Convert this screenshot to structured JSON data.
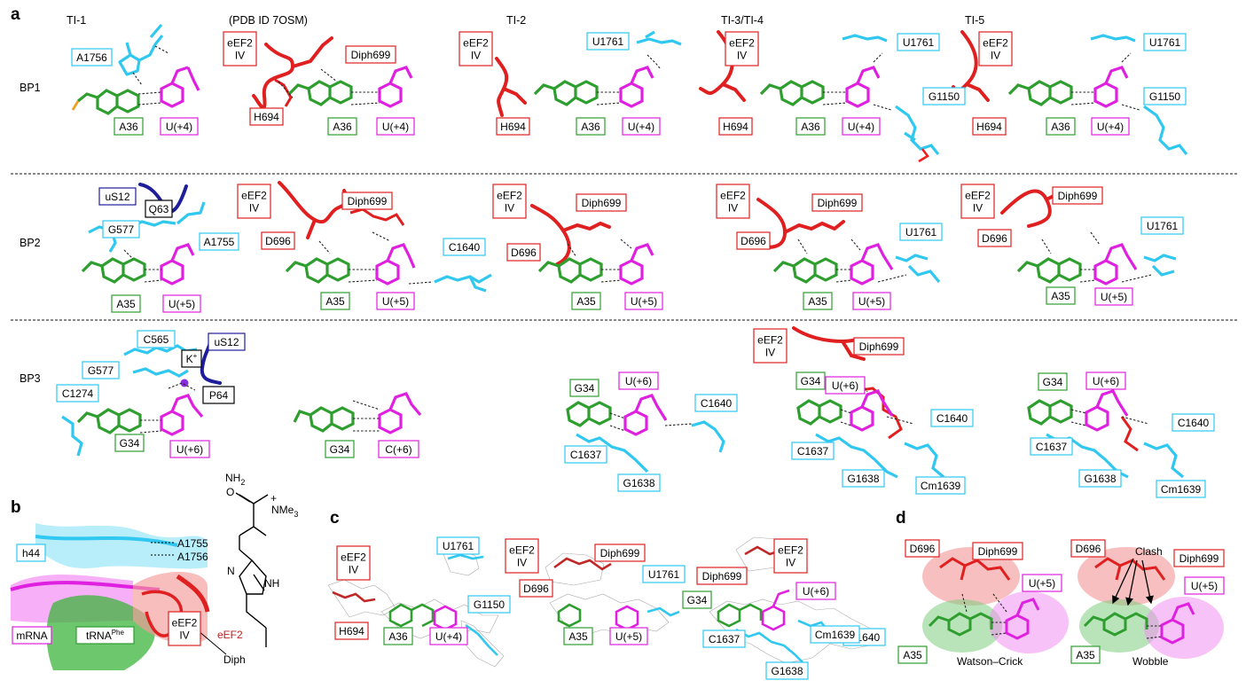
{
  "figure": {
    "panel_letters": {
      "a": "a",
      "b": "b",
      "c": "c",
      "d": "d"
    },
    "columns": [
      "TI-1",
      "(PDB ID 7OSM)",
      "TI-2",
      "TI-3/TI-4",
      "TI-5"
    ],
    "rows": [
      "BP1",
      "BP2",
      "BP3"
    ],
    "panel_b": {
      "labels": [
        "h44",
        "A1755",
        "A1756",
        "mRNA",
        "tRNA",
        "Phe",
        "eEF2",
        "IV",
        "Diph"
      ],
      "diphthamide": {
        "nh2": "NH",
        "nh2_sub": "2",
        "nme3": "NMe",
        "nme3_sub": "3",
        "plus": "+",
        "nh": "NH",
        "n": "N",
        "o": "O",
        "eef2_label": "eEF2"
      }
    },
    "panel_d": {
      "captions": [
        "Watson–Crick",
        "Wobble"
      ],
      "clash": "Clash"
    },
    "labels": {
      "eef2": "eEF2",
      "iv": "IV",
      "a1756": "A1756",
      "a36": "A36",
      "u4": "U(+4)",
      "h694": "H694",
      "diph699": "Diph699",
      "u1761": "U1761",
      "g1150": "G1150",
      "us12": "uS12",
      "q63": "Q63",
      "g577": "G577",
      "a1755": "A1755",
      "a35": "A35",
      "u5": "U(+5)",
      "d696": "D696",
      "c1640": "C1640",
      "c565": "C565",
      "k": "K",
      "kplus": "+",
      "p64": "P64",
      "c1274": "C1274",
      "g34": "G34",
      "u6": "U(+6)",
      "c6": "C(+6)",
      "c1637": "C1637",
      "g1638": "G1638",
      "cm1639": "Cm1639"
    },
    "colors": {
      "eef2_red": "#e02020",
      "trna_green": "#2e9e2e",
      "mrna_magenta": "#e020e0",
      "rrna_cyan": "#30c8f0",
      "us12_navy": "#1e1e9a",
      "oxygen_red": "#f02020",
      "phosphate_orange": "#f0a020",
      "nitrogen_blue": "#3030e0"
    }
  }
}
